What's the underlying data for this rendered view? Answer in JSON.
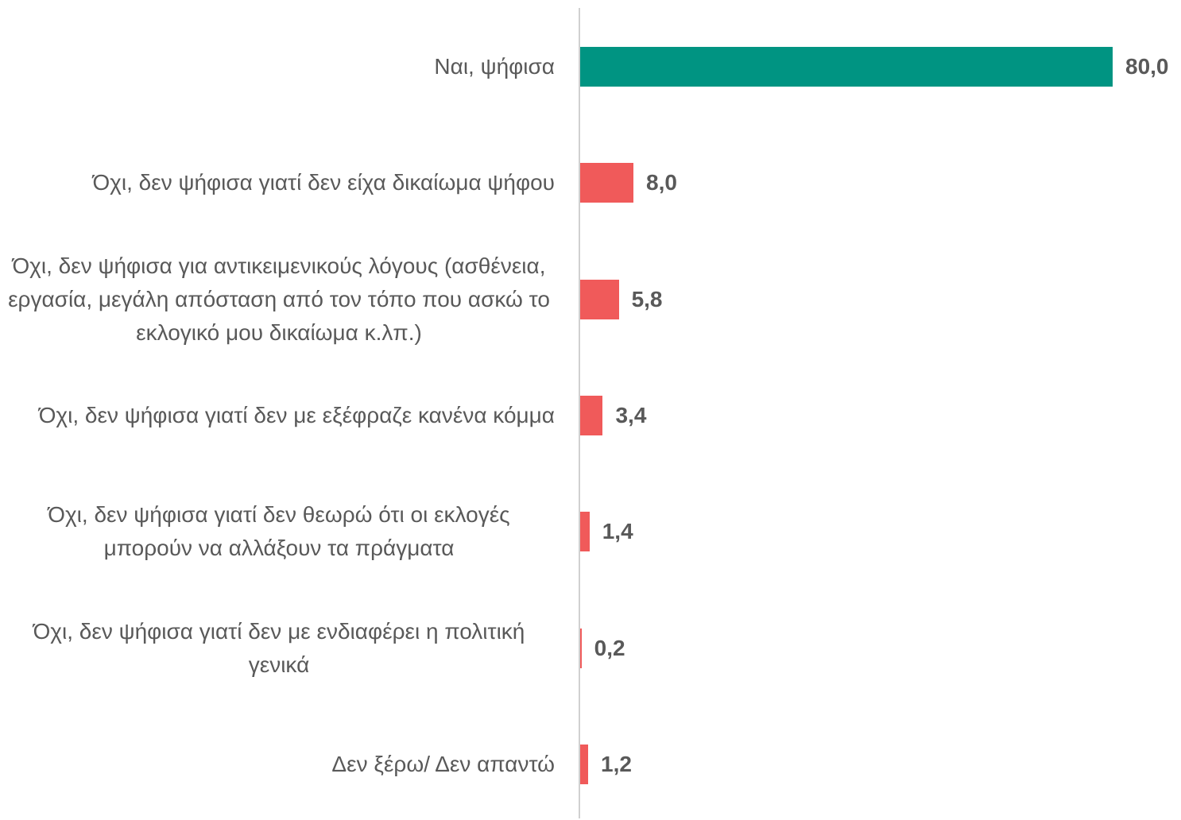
{
  "chart_data": {
    "type": "bar",
    "orientation": "horizontal",
    "categories": [
      "Ναι, ψήφισα",
      "Όχι, δεν ψήφισα γιατί δεν είχα δικαίωμα ψήφου",
      "Όχι, δεν ψήφισα για αντικειμενικούς λόγους (ασθένεια, εργασία, μεγάλη απόσταση από τον τόπο που ασκώ το εκλογικό μου δικαίωμα κ.λπ.)",
      "Όχι, δεν ψήφισα γιατί δεν με εξέφραζε κανένα κόμμα",
      "Όχι, δεν ψήφισα γιατί δεν θεωρώ ότι οι εκλογές μπορούν να αλλάξουν τα πράγματα",
      "Όχι, δεν ψήφισα γιατί δεν με ενδιαφέρει η πολιτική γενικά",
      "Δεν ξέρω/ Δεν απαντώ"
    ],
    "values": [
      80.0,
      8.0,
      5.8,
      3.4,
      1.4,
      0.2,
      1.2
    ],
    "value_labels": [
      "80,0",
      "8,0",
      "5,8",
      "3,4",
      "1,4",
      "0,2",
      "1,2"
    ],
    "colors": [
      "#009482",
      "#f05a5a",
      "#f05a5a",
      "#f05a5a",
      "#f05a5a",
      "#f05a5a",
      "#f05a5a"
    ]
  }
}
